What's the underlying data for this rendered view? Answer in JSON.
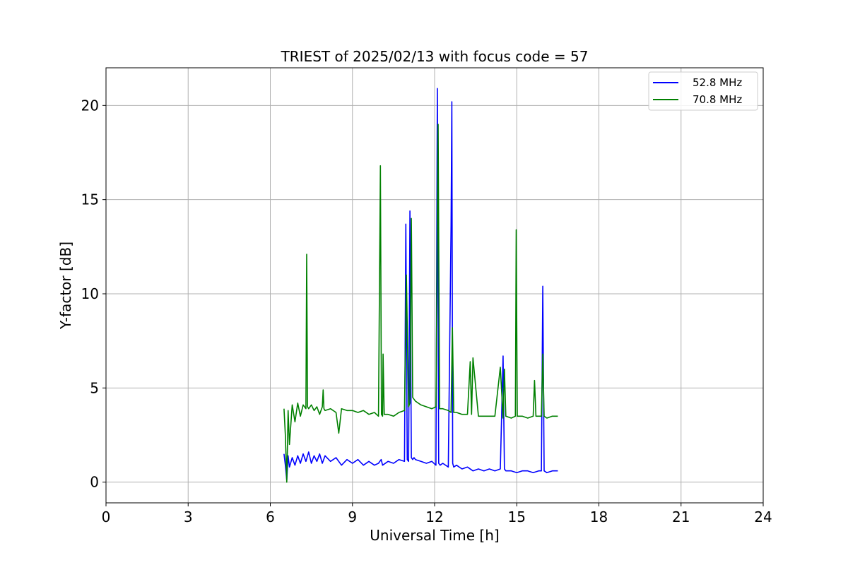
{
  "chart_data": {
    "type": "line",
    "title": "TRIEST of 2025/02/13 with focus code = 57",
    "xlabel": "Universal Time [h]",
    "ylabel": "Y-factor [dB]",
    "xlim": [
      0,
      24
    ],
    "ylim": [
      -1.1,
      22
    ],
    "xticks": [
      0,
      3,
      6,
      9,
      12,
      15,
      18,
      21,
      24
    ],
    "yticks": [
      0,
      5,
      10,
      15,
      20
    ],
    "grid": true,
    "legend_position": "top-right",
    "series": [
      {
        "name": "52.8 MHz",
        "color": "#0000ff",
        "x": [
          6.5,
          6.55,
          6.6,
          6.65,
          6.7,
          6.8,
          6.9,
          7.0,
          7.1,
          7.2,
          7.3,
          7.4,
          7.5,
          7.6,
          7.7,
          7.8,
          7.9,
          8.0,
          8.2,
          8.4,
          8.6,
          8.8,
          9.0,
          9.2,
          9.4,
          9.6,
          9.8,
          9.95,
          10.05,
          10.1,
          10.3,
          10.5,
          10.7,
          10.9,
          10.95,
          11.0,
          11.05,
          11.1,
          11.15,
          11.2,
          11.25,
          11.3,
          11.5,
          11.7,
          11.9,
          12.05,
          12.1,
          12.15,
          12.2,
          12.3,
          12.5,
          12.6,
          12.63,
          12.66,
          12.7,
          12.8,
          13.0,
          13.2,
          13.4,
          13.6,
          13.8,
          14.0,
          14.2,
          14.4,
          14.5,
          14.55,
          14.6,
          14.8,
          15.0,
          15.2,
          15.4,
          15.6,
          15.8,
          15.9,
          15.95,
          16.0,
          16.1,
          16.3,
          16.5
        ],
        "y": [
          1.5,
          0.9,
          0.1,
          1.4,
          0.8,
          1.3,
          0.9,
          1.4,
          1.0,
          1.5,
          1.1,
          1.6,
          1.0,
          1.4,
          1.1,
          1.5,
          1.0,
          1.4,
          1.1,
          1.3,
          0.9,
          1.2,
          1.0,
          1.2,
          0.9,
          1.1,
          0.9,
          1.0,
          1.2,
          0.9,
          1.1,
          1.0,
          1.2,
          1.1,
          13.7,
          1.2,
          1.1,
          14.4,
          1.3,
          1.2,
          1.3,
          1.2,
          1.1,
          1.0,
          1.1,
          0.9,
          20.9,
          1.0,
          0.9,
          1.0,
          0.8,
          13.6,
          20.2,
          1.0,
          0.8,
          0.9,
          0.7,
          0.8,
          0.6,
          0.7,
          0.6,
          0.7,
          0.6,
          0.7,
          6.7,
          0.7,
          0.6,
          0.6,
          0.5,
          0.6,
          0.6,
          0.5,
          0.6,
          0.6,
          10.4,
          0.6,
          0.5,
          0.6,
          0.6
        ]
      },
      {
        "name": "70.8 MHz",
        "color": "#008000",
        "x": [
          6.5,
          6.55,
          6.6,
          6.65,
          6.7,
          6.8,
          6.9,
          7.0,
          7.1,
          7.2,
          7.3,
          7.33,
          7.36,
          7.4,
          7.5,
          7.6,
          7.7,
          7.8,
          7.9,
          7.93,
          7.96,
          8.0,
          8.2,
          8.4,
          8.5,
          8.6,
          8.8,
          9.0,
          9.2,
          9.4,
          9.6,
          9.8,
          9.95,
          10.02,
          10.06,
          10.1,
          10.12,
          10.16,
          10.3,
          10.5,
          10.7,
          10.9,
          10.97,
          11.05,
          11.1,
          11.15,
          11.2,
          11.25,
          11.3,
          11.5,
          11.7,
          11.9,
          12.05,
          12.13,
          12.18,
          12.3,
          12.5,
          12.6,
          12.65,
          12.7,
          12.8,
          13.0,
          13.2,
          13.3,
          13.35,
          13.4,
          13.6,
          13.8,
          14.0,
          14.2,
          14.4,
          14.5,
          14.55,
          14.6,
          14.8,
          14.95,
          14.98,
          15.02,
          15.2,
          15.4,
          15.6,
          15.65,
          15.7,
          15.9,
          15.95,
          16.0,
          16.1,
          16.3,
          16.5
        ],
        "y": [
          3.9,
          2.5,
          0.0,
          3.8,
          2.0,
          4.1,
          3.2,
          4.2,
          3.5,
          4.1,
          3.9,
          12.1,
          4.0,
          3.9,
          4.1,
          3.8,
          4.0,
          3.6,
          4.0,
          4.9,
          3.9,
          3.8,
          3.9,
          3.7,
          2.6,
          3.9,
          3.8,
          3.8,
          3.7,
          3.8,
          3.6,
          3.7,
          3.5,
          16.8,
          3.6,
          3.5,
          6.8,
          3.6,
          3.6,
          3.5,
          3.7,
          3.8,
          11.0,
          4.0,
          4.2,
          14.0,
          4.5,
          4.4,
          4.3,
          4.1,
          4.0,
          3.9,
          4.0,
          19.0,
          3.9,
          3.9,
          3.8,
          3.7,
          8.2,
          3.7,
          3.7,
          3.6,
          3.6,
          6.4,
          3.6,
          6.6,
          3.5,
          3.5,
          3.5,
          3.5,
          6.1,
          3.4,
          6.0,
          3.5,
          3.4,
          3.5,
          13.4,
          3.5,
          3.5,
          3.4,
          3.5,
          5.4,
          3.5,
          3.5,
          6.8,
          3.5,
          3.4,
          3.5,
          3.5
        ]
      }
    ]
  }
}
